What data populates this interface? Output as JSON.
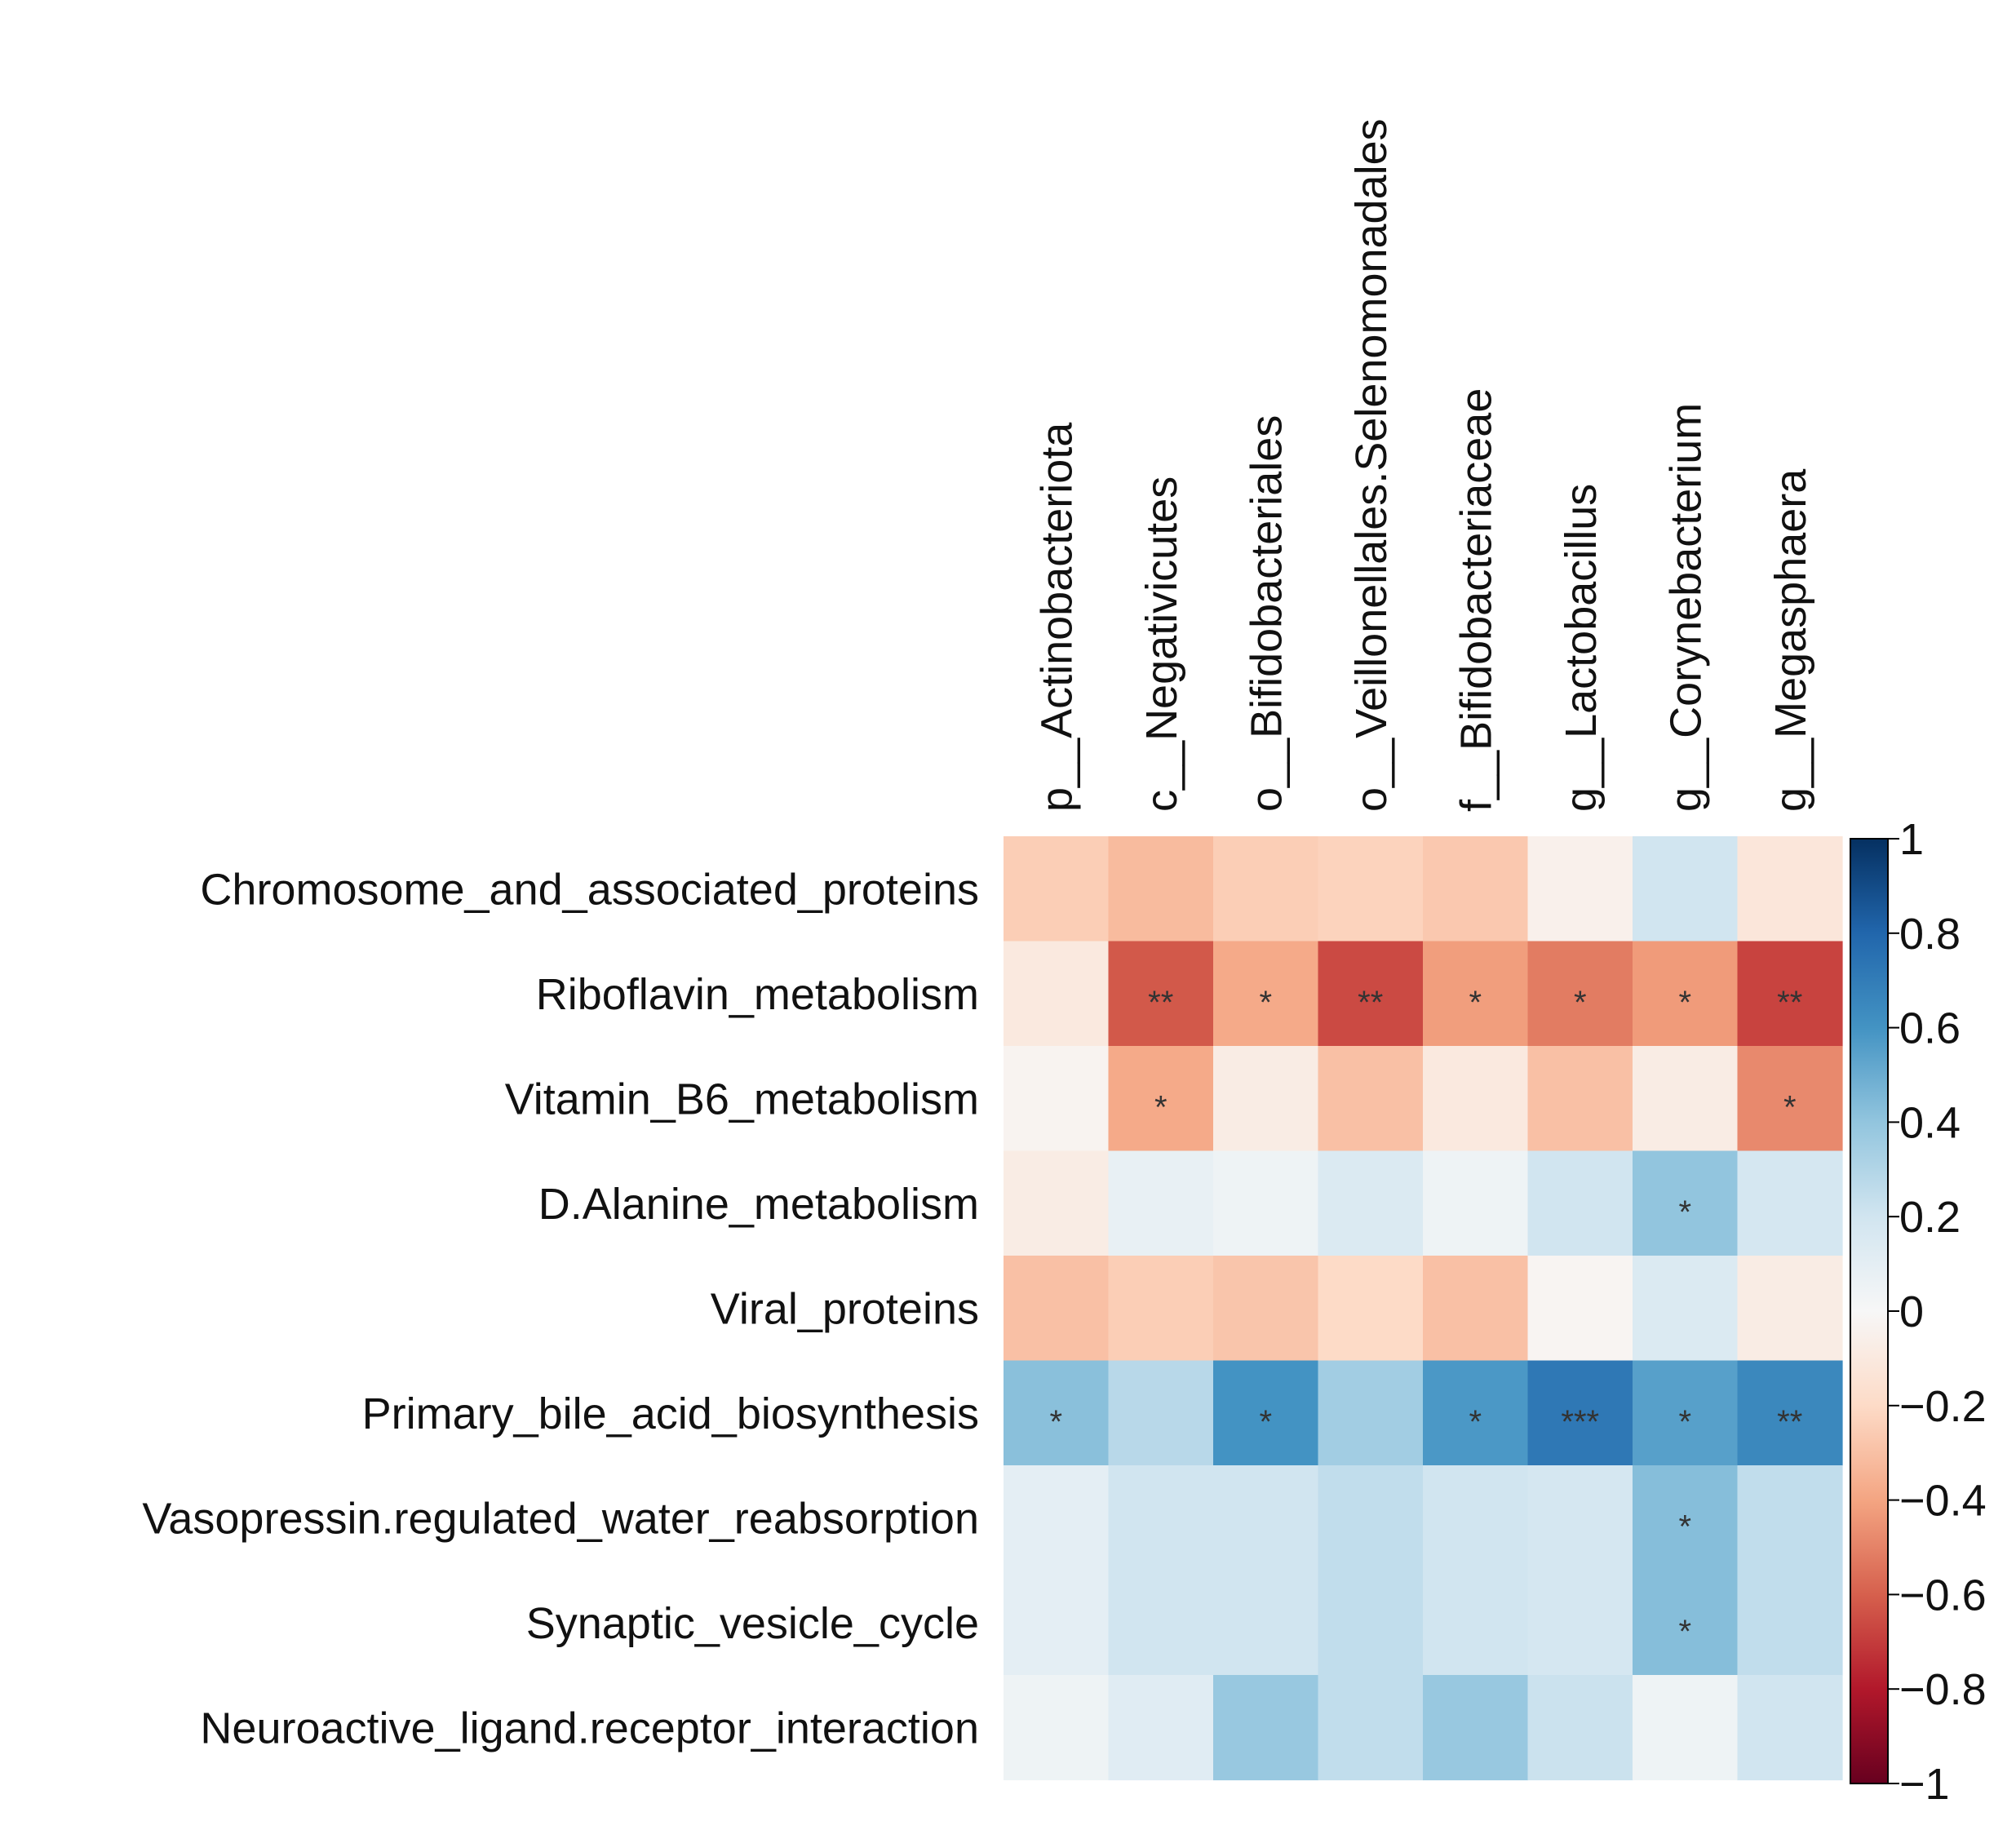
{
  "chart_data": {
    "type": "heatmap",
    "title": "",
    "columns": [
      "p__Actinobacteriota",
      "c__Negativicutes",
      "o__Bifidobacteriales",
      "o__Veillonellales.Selenomonadales",
      "f__Bifidobacteriaceae",
      "g__Lactobacillus",
      "g__Corynebacterium",
      "g__Megasphaera"
    ],
    "rows": [
      "Chromosome_and_associated_proteins",
      "Riboflavin_metabolism",
      "Vitamin_B6_metabolism",
      "D.Alanine_metabolism",
      "Viral_proteins",
      "Primary_bile_acid_biosynthesis",
      "Vasopressin.regulated_water_reabsorption",
      "Synaptic_vesicle_cycle",
      "Neuroactive_ligand.receptor_interaction"
    ],
    "values": [
      [
        -0.25,
        -0.32,
        -0.25,
        -0.23,
        -0.27,
        -0.05,
        0.2,
        -0.12
      ],
      [
        -0.1,
        -0.62,
        -0.38,
        -0.66,
        -0.42,
        -0.52,
        -0.43,
        -0.68
      ],
      [
        -0.03,
        -0.38,
        -0.08,
        -0.3,
        -0.1,
        -0.3,
        -0.08,
        -0.48
      ],
      [
        -0.08,
        0.08,
        0.05,
        0.15,
        0.05,
        0.2,
        0.4,
        0.18
      ],
      [
        -0.3,
        -0.25,
        -0.28,
        -0.2,
        -0.3,
        -0.02,
        0.15,
        -0.08
      ],
      [
        0.42,
        0.28,
        0.6,
        0.35,
        0.58,
        0.72,
        0.55,
        0.65
      ],
      [
        0.1,
        0.2,
        0.2,
        0.25,
        0.2,
        0.18,
        0.43,
        0.25
      ],
      [
        0.1,
        0.2,
        0.2,
        0.25,
        0.2,
        0.18,
        0.43,
        0.25
      ],
      [
        0.05,
        0.12,
        0.38,
        0.25,
        0.38,
        0.22,
        0.05,
        0.2
      ]
    ],
    "significance": [
      [
        "",
        "",
        "",
        "",
        "",
        "",
        "",
        ""
      ],
      [
        "",
        "**",
        "*",
        "**",
        "*",
        "*",
        "*",
        "**"
      ],
      [
        "",
        "*",
        "",
        "",
        "",
        "",
        "",
        "*"
      ],
      [
        "",
        "",
        "",
        "",
        "",
        "",
        "*",
        ""
      ],
      [
        "",
        "",
        "",
        "",
        "",
        "",
        "",
        ""
      ],
      [
        "*",
        "",
        "*",
        "",
        "*",
        "***",
        "*",
        "**"
      ],
      [
        "",
        "",
        "",
        "",
        "",
        "",
        "*",
        ""
      ],
      [
        "",
        "",
        "",
        "",
        "",
        "",
        "*",
        ""
      ],
      [
        "",
        "",
        "",
        "",
        "",
        "",
        "",
        ""
      ]
    ],
    "colorbar": {
      "range": [
        -1,
        1
      ],
      "ticks": [
        1,
        0.8,
        0.6,
        0.4,
        0.2,
        0,
        -0.2,
        -0.4,
        -0.6,
        -0.8,
        -1
      ],
      "tick_labels": [
        "1",
        "0.8",
        "0.6",
        "0.4",
        "0.2",
        "0",
        "−0.2",
        "−0.4",
        "−0.6",
        "−0.8",
        "−1"
      ],
      "colormap": "RdBu",
      "color_stops": [
        "#67001f",
        "#b2182b",
        "#d6604d",
        "#f4a582",
        "#fddbc7",
        "#f7f7f7",
        "#d1e5f0",
        "#92c5de",
        "#4393c3",
        "#2166ac",
        "#053061"
      ]
    }
  }
}
